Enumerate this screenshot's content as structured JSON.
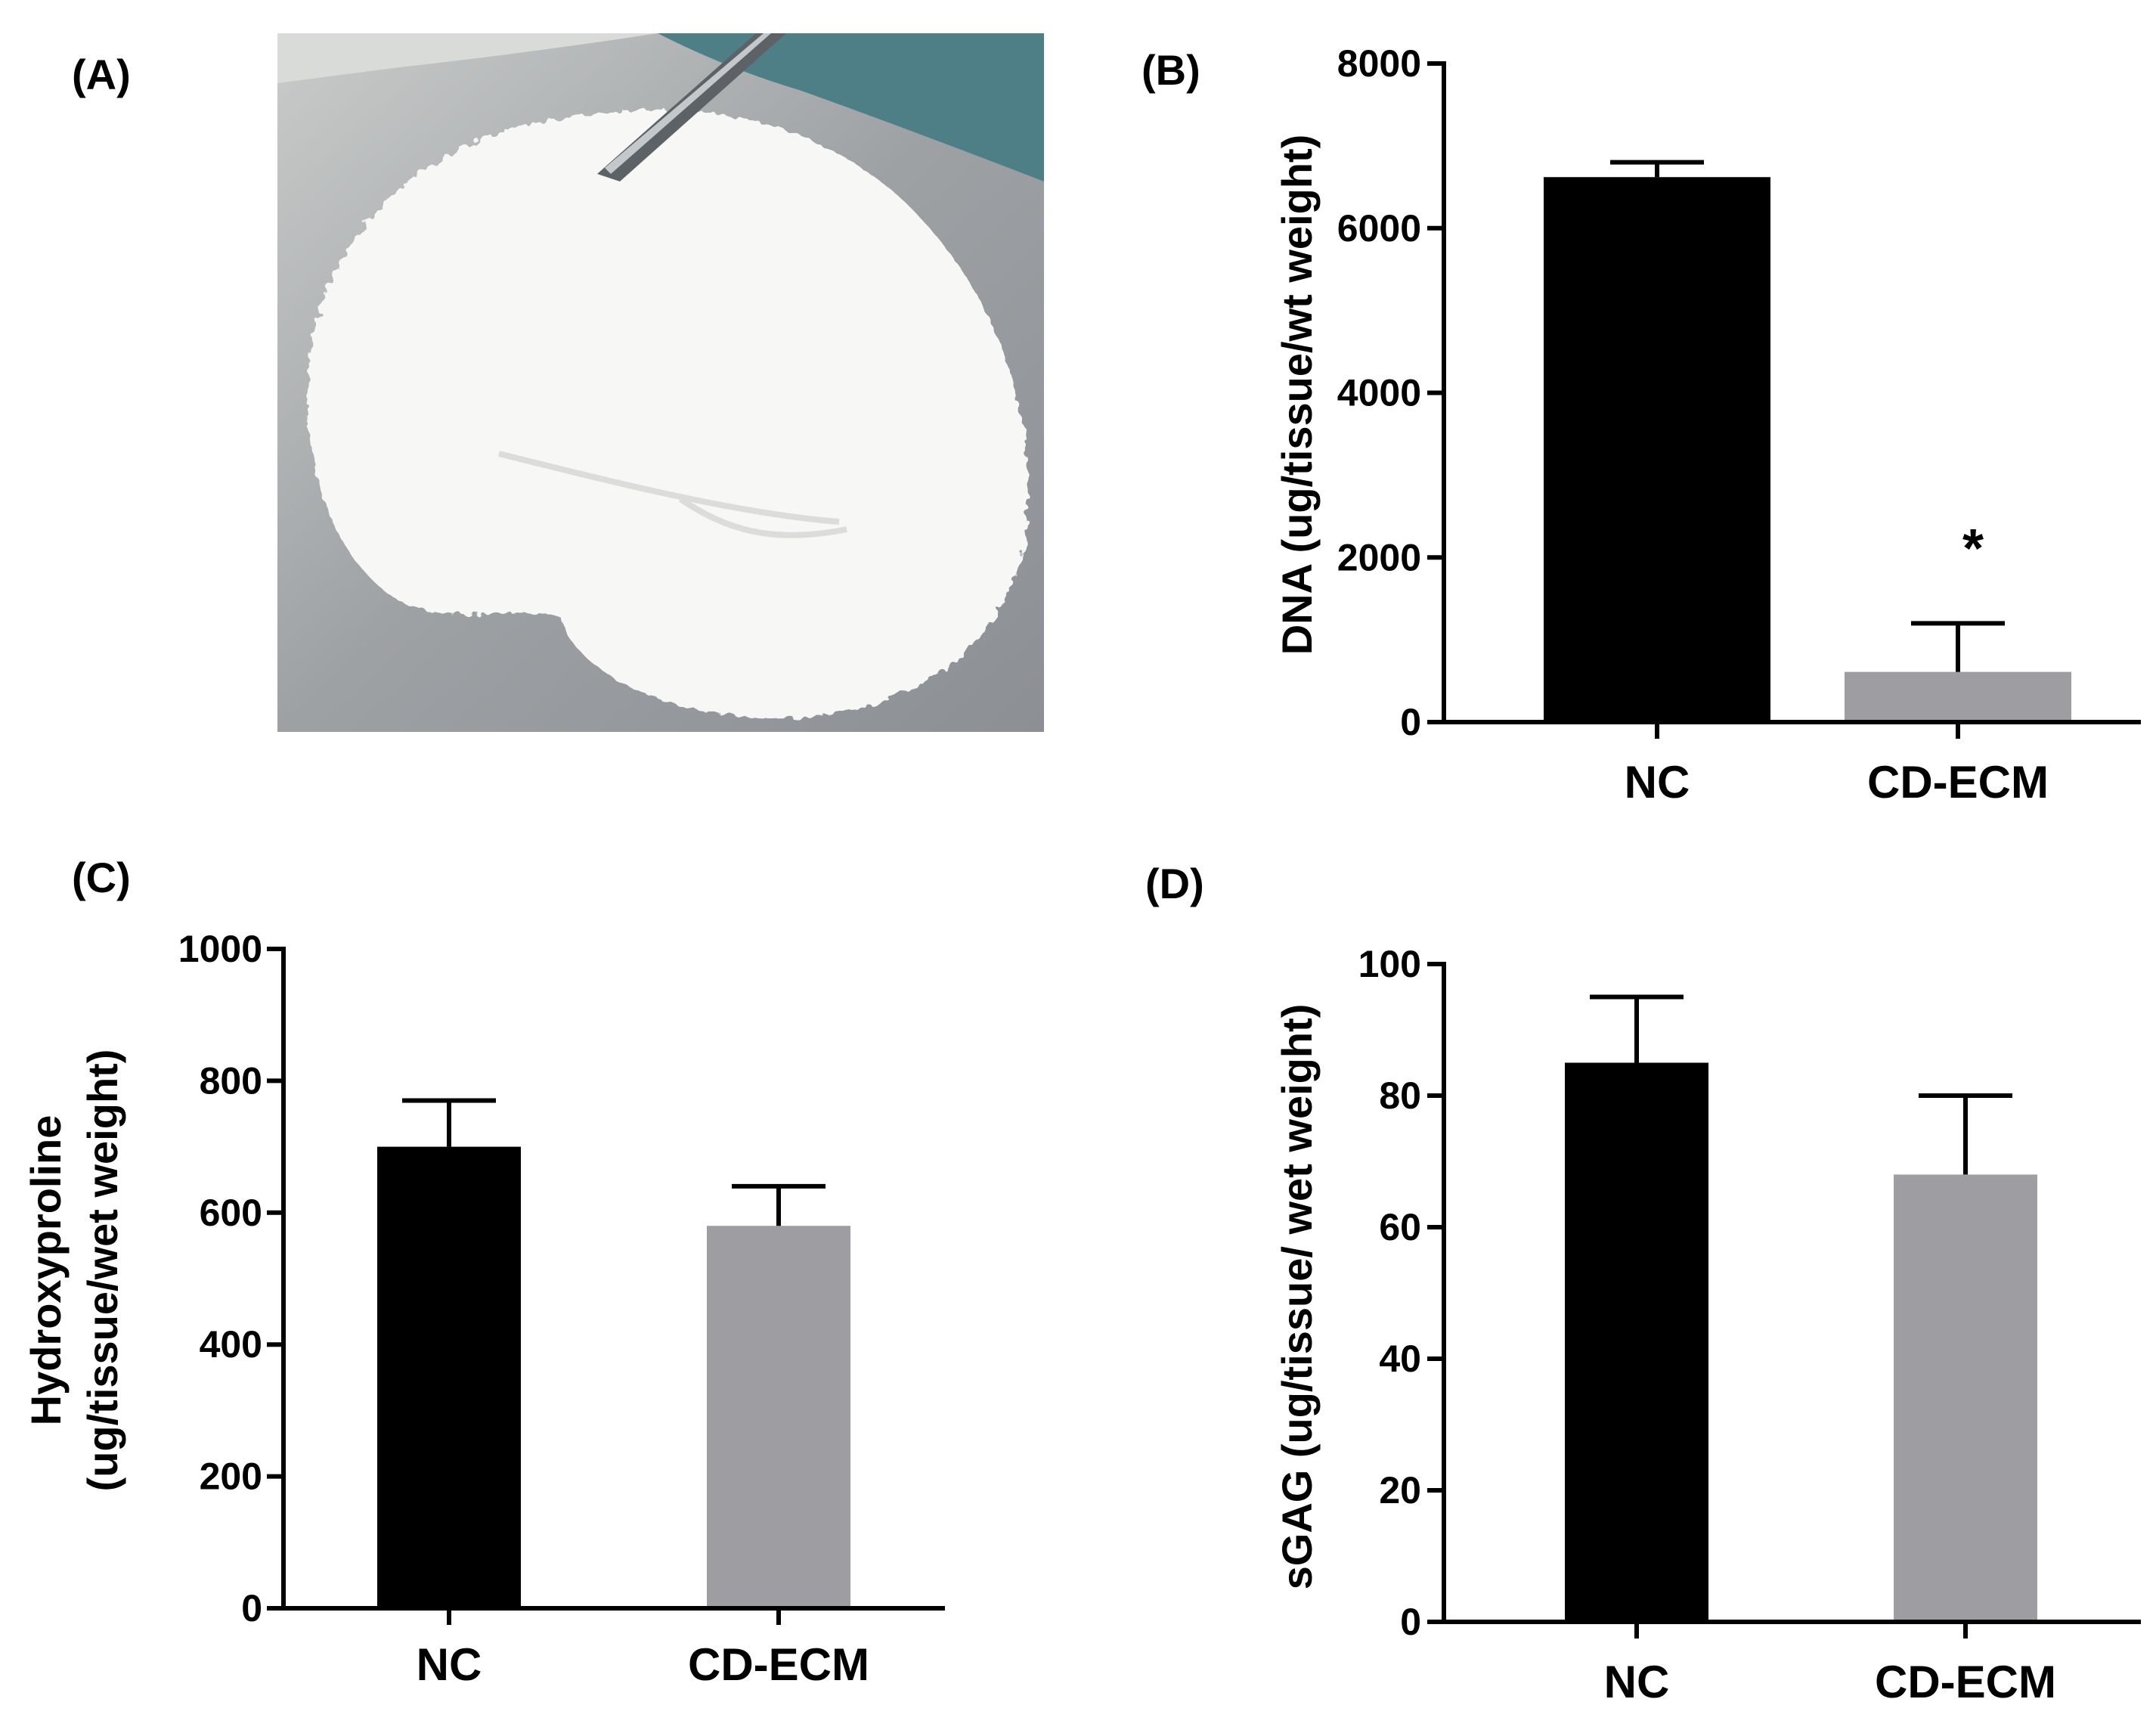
{
  "colors": {
    "nc": "#000000",
    "cd_ecm": "#9d9da2",
    "axis": "#000000",
    "background": "#ffffff"
  },
  "panel_a": {
    "label": "(A)",
    "photo": "white decellularized tissue disc held by forceps on a grey surface"
  },
  "chart_data": [
    {
      "panel": "B",
      "panel_label": "(B)",
      "type": "bar",
      "categories": [
        "NC",
        "CD-ECM"
      ],
      "values": [
        6620,
        610
      ],
      "errors": [
        180,
        590
      ],
      "ylabel_lines": [
        "DNA (ug/tissue/wt weight)"
      ],
      "ylim": [
        0,
        8000
      ],
      "yticks": [
        0,
        2000,
        4000,
        6000,
        8000
      ],
      "ytick_labels": [
        "0",
        "2000",
        "4000",
        "6000",
        "8000"
      ],
      "annotations": [
        {
          "category": "CD-ECM",
          "text": "*"
        }
      ]
    },
    {
      "panel": "C",
      "panel_label": "(C)",
      "type": "bar",
      "categories": [
        "NC",
        "CD-ECM"
      ],
      "values": [
        700,
        580
      ],
      "errors": [
        70,
        60
      ],
      "ylabel_lines": [
        "Hydroxyproline",
        "(ug/tissue/wet weight)"
      ],
      "ylim": [
        0,
        1000
      ],
      "yticks": [
        0,
        200,
        400,
        600,
        800,
        1000
      ],
      "ytick_labels": [
        "0",
        "200",
        "400",
        "600",
        "800",
        "1000"
      ],
      "annotations": []
    },
    {
      "panel": "D",
      "panel_label": "(D)",
      "type": "bar",
      "categories": [
        "NC",
        "CD-ECM"
      ],
      "values": [
        85,
        68
      ],
      "errors": [
        10,
        12
      ],
      "ylabel_lines": [
        "sGAG (ug/tissue/ wet weight)"
      ],
      "ylim": [
        0,
        100
      ],
      "yticks": [
        0,
        20,
        40,
        60,
        80,
        100
      ],
      "ytick_labels": [
        "0",
        "20",
        "40",
        "60",
        "80",
        "100"
      ],
      "annotations": []
    }
  ]
}
